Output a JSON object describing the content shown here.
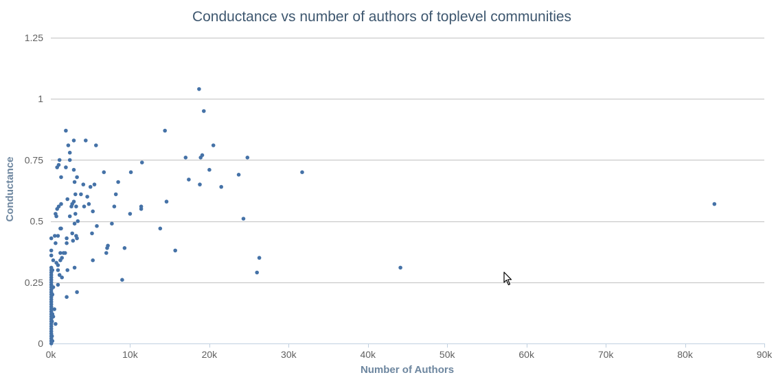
{
  "chart_data": {
    "type": "scatter",
    "title": "Conductance vs number of authors of toplevel communities",
    "xlabel": "Number of Authors",
    "ylabel": "Conductance",
    "xlim": [
      0,
      90000
    ],
    "ylim": [
      0,
      1.25
    ],
    "xticks": [
      0,
      10000,
      20000,
      30000,
      40000,
      50000,
      60000,
      70000,
      80000,
      90000
    ],
    "xtick_labels": [
      "0k",
      "10k",
      "20k",
      "30k",
      "40k",
      "50k",
      "60k",
      "70k",
      "80k",
      "90k"
    ],
    "yticks": [
      0,
      0.25,
      0.5,
      0.75,
      1,
      1.25
    ],
    "ytick_labels": [
      "0",
      "0.25",
      "0.5",
      "0.75",
      "1",
      "1.25"
    ],
    "grid": "horizontal",
    "legend": "none",
    "color": "#4572a7",
    "points": [
      [
        60,
        0.0
      ],
      [
        60,
        0.01
      ],
      [
        60,
        0.02
      ],
      [
        60,
        0.03
      ],
      [
        60,
        0.04
      ],
      [
        60,
        0.05
      ],
      [
        60,
        0.06
      ],
      [
        60,
        0.07
      ],
      [
        60,
        0.08
      ],
      [
        60,
        0.09
      ],
      [
        60,
        0.1
      ],
      [
        60,
        0.11
      ],
      [
        60,
        0.12
      ],
      [
        60,
        0.13
      ],
      [
        60,
        0.14
      ],
      [
        60,
        0.15
      ],
      [
        60,
        0.16
      ],
      [
        60,
        0.17
      ],
      [
        60,
        0.18
      ],
      [
        60,
        0.19
      ],
      [
        60,
        0.2
      ],
      [
        60,
        0.21
      ],
      [
        60,
        0.22
      ],
      [
        60,
        0.23
      ],
      [
        60,
        0.24
      ],
      [
        60,
        0.25
      ],
      [
        60,
        0.26
      ],
      [
        60,
        0.27
      ],
      [
        60,
        0.28
      ],
      [
        60,
        0.29
      ],
      [
        60,
        0.3
      ],
      [
        60,
        0.31
      ],
      [
        60,
        0.36
      ],
      [
        60,
        0.38
      ],
      [
        60,
        0.43
      ],
      [
        150,
        0.03
      ],
      [
        150,
        0.09
      ],
      [
        200,
        0.01
      ],
      [
        200,
        0.12
      ],
      [
        200,
        0.2
      ],
      [
        200,
        0.3
      ],
      [
        300,
        0.11
      ],
      [
        300,
        0.23
      ],
      [
        300,
        0.34
      ],
      [
        450,
        0.14
      ],
      [
        500,
        0.44
      ],
      [
        600,
        0.41
      ],
      [
        600,
        0.08
      ],
      [
        700,
        0.33
      ],
      [
        600,
        0.53
      ],
      [
        700,
        0.52
      ],
      [
        800,
        0.55
      ],
      [
        800,
        0.72
      ],
      [
        900,
        0.44
      ],
      [
        900,
        0.3
      ],
      [
        900,
        0.24
      ],
      [
        900,
        0.32
      ],
      [
        1000,
        0.73
      ],
      [
        1000,
        0.56
      ],
      [
        1100,
        0.75
      ],
      [
        1100,
        0.28
      ],
      [
        1200,
        0.47
      ],
      [
        1200,
        0.37
      ],
      [
        1200,
        0.34
      ],
      [
        1300,
        0.57
      ],
      [
        1300,
        0.47
      ],
      [
        1300,
        0.68
      ],
      [
        1400,
        0.35
      ],
      [
        1400,
        0.27
      ],
      [
        1600,
        0.37
      ],
      [
        1800,
        0.37
      ],
      [
        1900,
        0.72
      ],
      [
        1900,
        0.87
      ],
      [
        2000,
        0.41
      ],
      [
        2000,
        0.43
      ],
      [
        2000,
        0.19
      ],
      [
        2100,
        0.59
      ],
      [
        2100,
        0.3
      ],
      [
        2200,
        0.81
      ],
      [
        2400,
        0.78
      ],
      [
        2400,
        0.75
      ],
      [
        2400,
        0.52
      ],
      [
        2600,
        0.56
      ],
      [
        2700,
        0.45
      ],
      [
        2700,
        0.57
      ],
      [
        2800,
        0.42
      ],
      [
        2900,
        0.58
      ],
      [
        2900,
        0.71
      ],
      [
        2900,
        0.83
      ],
      [
        3000,
        0.49
      ],
      [
        3000,
        0.66
      ],
      [
        3000,
        0.31
      ],
      [
        3100,
        0.61
      ],
      [
        3100,
        0.53
      ],
      [
        3200,
        0.56
      ],
      [
        3200,
        0.44
      ],
      [
        3300,
        0.68
      ],
      [
        3300,
        0.43
      ],
      [
        3300,
        0.21
      ],
      [
        3400,
        0.5
      ],
      [
        3800,
        0.61
      ],
      [
        4100,
        0.65
      ],
      [
        4200,
        0.56
      ],
      [
        4400,
        0.83
      ],
      [
        4600,
        0.6
      ],
      [
        4800,
        0.57
      ],
      [
        5000,
        0.64
      ],
      [
        5200,
        0.45
      ],
      [
        5300,
        0.54
      ],
      [
        5300,
        0.34
      ],
      [
        5500,
        0.65
      ],
      [
        5700,
        0.81
      ],
      [
        5800,
        0.48
      ],
      [
        6700,
        0.7
      ],
      [
        7000,
        0.37
      ],
      [
        7100,
        0.39
      ],
      [
        7200,
        0.4
      ],
      [
        7700,
        0.49
      ],
      [
        8000,
        0.56
      ],
      [
        8200,
        0.61
      ],
      [
        8500,
        0.66
      ],
      [
        9000,
        0.26
      ],
      [
        9300,
        0.39
      ],
      [
        10000,
        0.53
      ],
      [
        10100,
        0.7
      ],
      [
        11400,
        0.55
      ],
      [
        11400,
        0.56
      ],
      [
        11500,
        0.74
      ],
      [
        13800,
        0.47
      ],
      [
        14400,
        0.87
      ],
      [
        14600,
        0.58
      ],
      [
        15700,
        0.38
      ],
      [
        17000,
        0.76
      ],
      [
        17400,
        0.67
      ],
      [
        18700,
        1.04
      ],
      [
        18800,
        0.65
      ],
      [
        18900,
        0.76
      ],
      [
        19100,
        0.77
      ],
      [
        19300,
        0.95
      ],
      [
        20000,
        0.71
      ],
      [
        20500,
        0.81
      ],
      [
        21500,
        0.64
      ],
      [
        23700,
        0.69
      ],
      [
        24300,
        0.51
      ],
      [
        24800,
        0.76
      ],
      [
        26000,
        0.29
      ],
      [
        26300,
        0.35
      ],
      [
        31700,
        0.7
      ],
      [
        44100,
        0.31
      ],
      [
        83700,
        0.57
      ]
    ]
  },
  "cursor": {
    "icon": "mouse-pointer-icon"
  }
}
